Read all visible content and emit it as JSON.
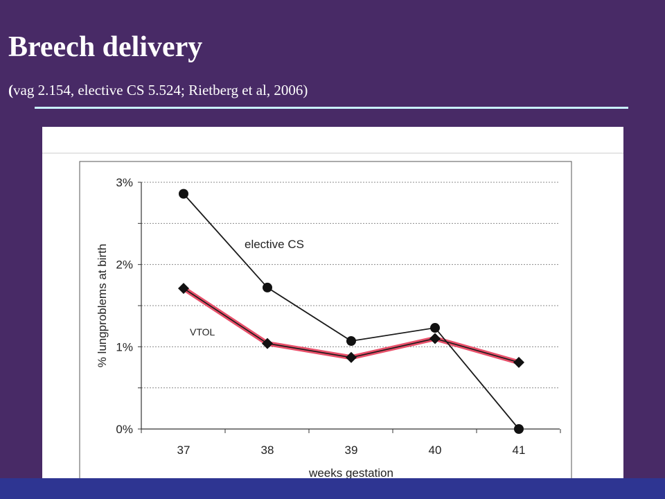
{
  "slide": {
    "title": "Breech delivery",
    "subtitle_open": "(",
    "subtitle": "vag 2.154, elective CS 5.524; Rietberg et al, 2006)"
  },
  "colors": {
    "background": "#482a66",
    "rule": "#c8f0ff",
    "bottom_band": "#2e3592",
    "vtol_highlight": "#e8506a",
    "line": "#1a1a1a"
  },
  "chart_data": {
    "type": "line",
    "title": "",
    "xlabel": "weeks gestation",
    "ylabel": "% lungproblems at birth",
    "categories": [
      "37",
      "38",
      "39",
      "40",
      "41"
    ],
    "yticks": [
      "0%",
      "1%",
      "2%",
      "3%"
    ],
    "ylim": [
      0,
      3
    ],
    "grid": true,
    "series": [
      {
        "name": "elective CS",
        "marker": "circle",
        "values": [
          2.86,
          1.72,
          1.07,
          1.23,
          0.0
        ]
      },
      {
        "name": "VTOL",
        "marker": "diamond",
        "values": [
          1.71,
          1.04,
          0.87,
          1.1,
          0.81
        ]
      }
    ]
  }
}
